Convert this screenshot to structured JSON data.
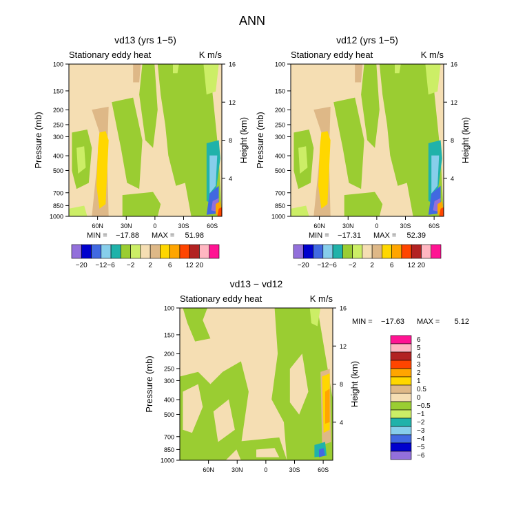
{
  "figure_title": "ANN",
  "chart_data": [
    {
      "type": "heatmap",
      "title": "vd13 (yrs 1−5)",
      "subtitle_left": "Stationary eddy heat",
      "subtitle_right": "K m/s",
      "ylabel": "Pressure (mb)",
      "ylabel_right": "Height (km)",
      "x_ticks": [
        "60N",
        "30N",
        "0",
        "30S",
        "60S"
      ],
      "y_ticks": [
        "100",
        "150",
        "200",
        "250",
        "300",
        "400",
        "500",
        "700",
        "850",
        "1000"
      ],
      "y_right_ticks": [
        "16",
        "12",
        "8",
        "4"
      ],
      "stats": {
        "min_label": "MIN =",
        "min_value": "−17.88",
        "max_label": "MAX =",
        "max_value": "51.98"
      },
      "colorbar": {
        "orientation": "horizontal",
        "labels": [
          "−20",
          "−12",
          "−6",
          "−2",
          "2",
          "6",
          "12",
          "20"
        ],
        "colors": [
          "#9370db",
          "#0000cd",
          "#4169e1",
          "#87ceeb",
          "#20b2aa",
          "#9acd32",
          "#ccee66",
          "#f5deb3",
          "#deb887",
          "#ffd700",
          "#ffa500",
          "#ff4500",
          "#b22222",
          "#ffb6c1",
          "#ff1493"
        ]
      }
    },
    {
      "type": "heatmap",
      "title": "vd12 (yrs 1−5)",
      "subtitle_left": "Stationary eddy heat",
      "subtitle_right": "K m/s",
      "ylabel": "Pressure (mb)",
      "ylabel_right": "Height (km)",
      "x_ticks": [
        "60N",
        "30N",
        "0",
        "30S",
        "60S"
      ],
      "y_ticks": [
        "100",
        "150",
        "200",
        "250",
        "300",
        "400",
        "500",
        "700",
        "850",
        "1000"
      ],
      "y_right_ticks": [
        "16",
        "12",
        "8",
        "4"
      ],
      "stats": {
        "min_label": "MIN =",
        "min_value": "−17.31",
        "max_label": "MAX =",
        "max_value": "52.39"
      },
      "colorbar": {
        "orientation": "horizontal",
        "labels": [
          "−20",
          "−12",
          "−6",
          "−2",
          "2",
          "6",
          "12",
          "20"
        ],
        "colors": [
          "#9370db",
          "#0000cd",
          "#4169e1",
          "#87ceeb",
          "#20b2aa",
          "#9acd32",
          "#ccee66",
          "#f5deb3",
          "#deb887",
          "#ffd700",
          "#ffa500",
          "#ff4500",
          "#b22222",
          "#ffb6c1",
          "#ff1493"
        ]
      }
    },
    {
      "type": "heatmap",
      "title": "vd13 − vd12",
      "subtitle_left": "Stationary eddy heat",
      "subtitle_right": "K m/s",
      "ylabel": "Pressure (mb)",
      "ylabel_right": "Height (km)",
      "x_ticks": [
        "60N",
        "30N",
        "0",
        "30S",
        "60S"
      ],
      "y_ticks": [
        "100",
        "150",
        "200",
        "250",
        "300",
        "400",
        "500",
        "700",
        "850",
        "1000"
      ],
      "y_right_ticks": [
        "16",
        "12",
        "8",
        "4"
      ],
      "stats": {
        "min_label": "MIN =",
        "min_value": "−17.63",
        "max_label": "MAX =",
        "max_value": "5.12"
      },
      "colorbar": {
        "orientation": "vertical",
        "labels": [
          "6",
          "5",
          "4",
          "3",
          "2",
          "1",
          "0.5",
          "0",
          "−0.5",
          "−1",
          "−2",
          "−3",
          "−4",
          "−5",
          "−6"
        ],
        "colors": [
          "#ff1493",
          "#ffb6c1",
          "#b22222",
          "#ff4500",
          "#ffa500",
          "#ffd700",
          "#deb887",
          "#f5deb3",
          "#9acd32",
          "#ccee66",
          "#20b2aa",
          "#87ceeb",
          "#4169e1",
          "#0000cd",
          "#9370db"
        ]
      }
    }
  ]
}
